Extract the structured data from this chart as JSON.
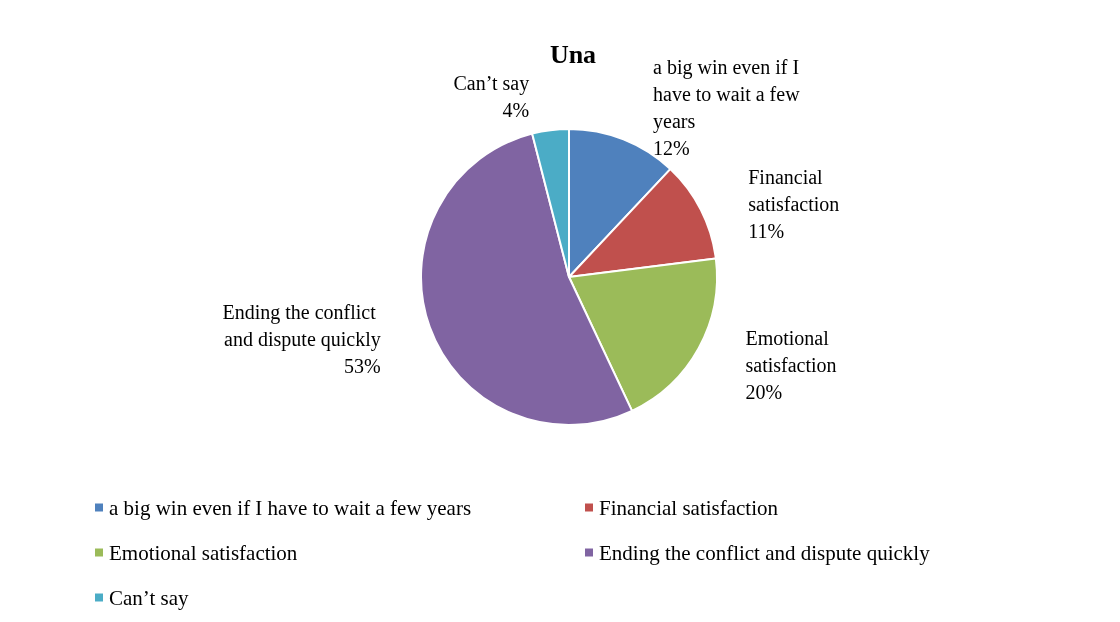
{
  "chart_data": {
    "type": "pie",
    "title": "Una",
    "categories": [
      "a big win even if I have to wait a few years",
      "Financial satisfaction",
      "Emotional satisfaction",
      "Ending the conflict and dispute quickly",
      "Can’t say"
    ],
    "values": [
      12,
      11,
      20,
      53,
      4
    ],
    "colors": [
      "#4f81bd",
      "#c0504d",
      "#9bbb59",
      "#8064a2",
      "#4bacc6"
    ],
    "value_labels": [
      "12%",
      "11%",
      "20%",
      "53%",
      "4%"
    ],
    "legend": "bottom"
  }
}
